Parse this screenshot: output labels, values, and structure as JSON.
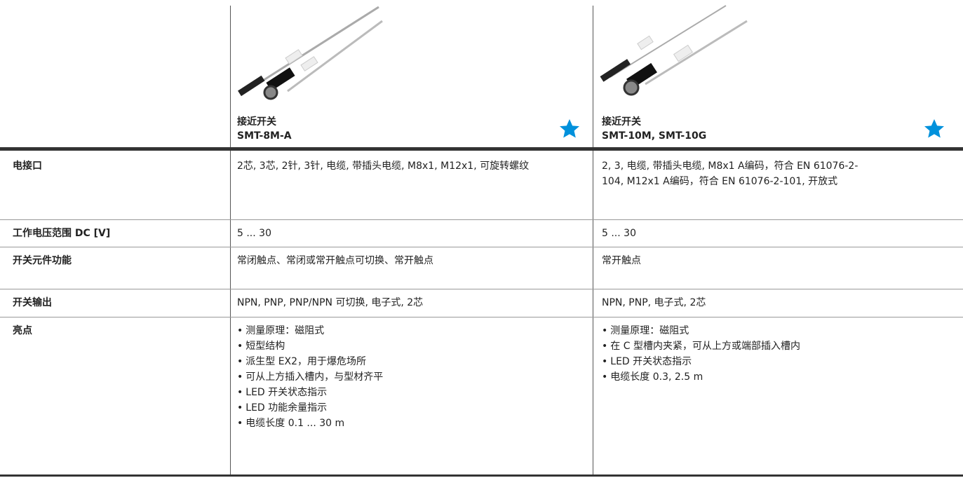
{
  "products": [
    {
      "type": "接近开关",
      "model": "SMT-8M-A"
    },
    {
      "type": "接近开关",
      "model": "SMT-10M, SMT-10G"
    }
  ],
  "rows": [
    {
      "label": "电接口",
      "cells": [
        "2芯, 3芯, 2针, 3针, 电缆, 带插头电缆, M8x1, M12x1, 可旋转螺纹",
        "2, 3, 电缆, 带插头电缆, M8x1 A编码，符合 EN 61076-2-104, M12x1 A编码，符合 EN 61076-2-101, 开放式"
      ]
    },
    {
      "label": "工作电压范围 DC [V]",
      "cells": [
        "5 ... 30",
        "5 ... 30"
      ]
    },
    {
      "label": "开关元件功能",
      "cells": [
        "常闭触点、常闭或常开触点可切换、常开触点",
        "常开触点"
      ]
    },
    {
      "label": "开关输出",
      "cells": [
        "NPN, PNP, PNP/NPN 可切换, 电子式, 2芯",
        "NPN, PNP, 电子式, 2芯"
      ]
    },
    {
      "label": "亮点",
      "cells": [
        [
          "测量原理：磁阻式",
          "短型结构",
          "派生型 EX2，用于爆危场所",
          "可从上方插入槽内，与型材齐平",
          "LED 开关状态指示",
          "LED 功能余量指示",
          "电缆长度 0.1 ... 30 m"
        ],
        [
          "测量原理：磁阻式",
          "在 C 型槽内夹紧，可从上方或端部插入槽内",
          "LED 开关状态指示",
          "电缆长度 0.3, 2.5 m"
        ]
      ]
    }
  ]
}
